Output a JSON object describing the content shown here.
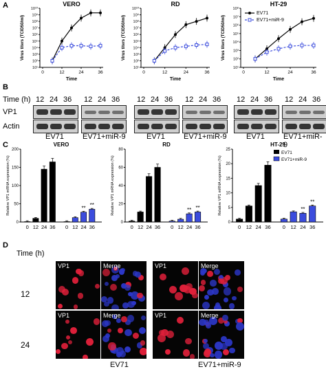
{
  "panels": {
    "a": "A",
    "b": "B",
    "c": "C",
    "d": "D"
  },
  "colors": {
    "ev71": "#000000",
    "mir9": "#3b4cdd",
    "micro_red": "#e0203a",
    "micro_blue": "#2c37c8"
  },
  "panel_a": {
    "ylabel": "Virus titers (TCID50/ml)",
    "xlabel": "Time",
    "legend": [
      "EV71",
      "EV71+miR-9"
    ],
    "charts": [
      {
        "title": "VERO",
        "x": [
          6,
          12,
          18,
          24,
          30,
          36
        ],
        "ev71": [
          2,
          5,
          7,
          8.5,
          9.3,
          9.3
        ],
        "mir9": [
          2,
          4,
          4.3,
          4.3,
          4.2,
          4.3
        ],
        "ylim": [
          1,
          10
        ],
        "yticks": [
          "10¹",
          "10²",
          "10³",
          "10⁴",
          "10⁵",
          "10⁶",
          "10⁷",
          "10⁸",
          "10⁹",
          "10¹⁰"
        ]
      },
      {
        "title": "RD",
        "x": [
          6,
          12,
          18,
          24,
          30,
          36
        ],
        "ev71": [
          2,
          4,
          6,
          7.5,
          8,
          8.5
        ],
        "mir9": [
          2,
          3.5,
          4,
          4.2,
          4.4,
          4.5
        ],
        "ylim": [
          1,
          10
        ],
        "yticks": [
          "10¹",
          "10²",
          "10³",
          "10⁴",
          "10⁵",
          "10⁶",
          "10⁷",
          "10⁸",
          "10⁹",
          "10¹⁰"
        ]
      },
      {
        "title": "HT-29",
        "x": [
          6,
          12,
          18,
          24,
          30,
          36
        ],
        "ev71": [
          2,
          3.2,
          4.4,
          5.5,
          6.4,
          6.8
        ],
        "mir9": [
          2,
          2.8,
          3.2,
          3.5,
          3.6,
          3.6
        ],
        "ylim": [
          1,
          8
        ],
        "yticks": [
          "10¹",
          "10²",
          "10³",
          "10⁴",
          "10⁵",
          "10⁶",
          "10⁷",
          "10⁸"
        ]
      }
    ]
  },
  "panel_b": {
    "time_label": "Time (h)",
    "times": [
      "12",
      "24",
      "36"
    ],
    "rows": [
      "VP1",
      "Actin"
    ],
    "groups": [
      "EV71",
      "EV71+miR-9"
    ]
  },
  "panel_c": {
    "ylabel": "Relative VP1 mRNA expression (%)",
    "legend": [
      "EV71",
      "EV71+miR-9"
    ],
    "charts": [
      {
        "title": "VERO",
        "categories": [
          "0",
          "12",
          "24",
          "36",
          "0",
          "12",
          "24",
          "36"
        ],
        "values": [
          1,
          10,
          145,
          165,
          1,
          12,
          27,
          35
        ],
        "ylim": [
          0,
          200
        ],
        "yticks": [
          0,
          50,
          100,
          150,
          200
        ],
        "stars": [
          false,
          false,
          false,
          false,
          false,
          false,
          true,
          true
        ]
      },
      {
        "title": "RD",
        "categories": [
          "0",
          "12",
          "24",
          "36",
          "0",
          "12",
          "24",
          "36"
        ],
        "values": [
          1,
          11,
          50,
          60,
          1,
          3,
          9,
          11
        ],
        "ylim": [
          0,
          80
        ],
        "yticks": [
          0,
          20,
          40,
          60,
          80
        ],
        "stars": [
          false,
          false,
          false,
          false,
          false,
          false,
          true,
          true
        ]
      },
      {
        "title": "HT-29",
        "categories": [
          "0",
          "12",
          "24",
          "36",
          "0",
          "12",
          "24",
          "36"
        ],
        "values": [
          1,
          5.5,
          12.5,
          19.5,
          1,
          3.5,
          3,
          5.5
        ],
        "ylim": [
          0,
          25
        ],
        "yticks": [
          0,
          5,
          10,
          15,
          20,
          25
        ],
        "stars": [
          false,
          false,
          false,
          false,
          false,
          false,
          true,
          true
        ]
      }
    ]
  },
  "panel_d": {
    "time_label": "Time (h)",
    "rows": [
      "12",
      "24"
    ],
    "image_labels": [
      "VP1",
      "Merge"
    ],
    "groups": [
      "EV71",
      "EV71+miR-9"
    ]
  }
}
